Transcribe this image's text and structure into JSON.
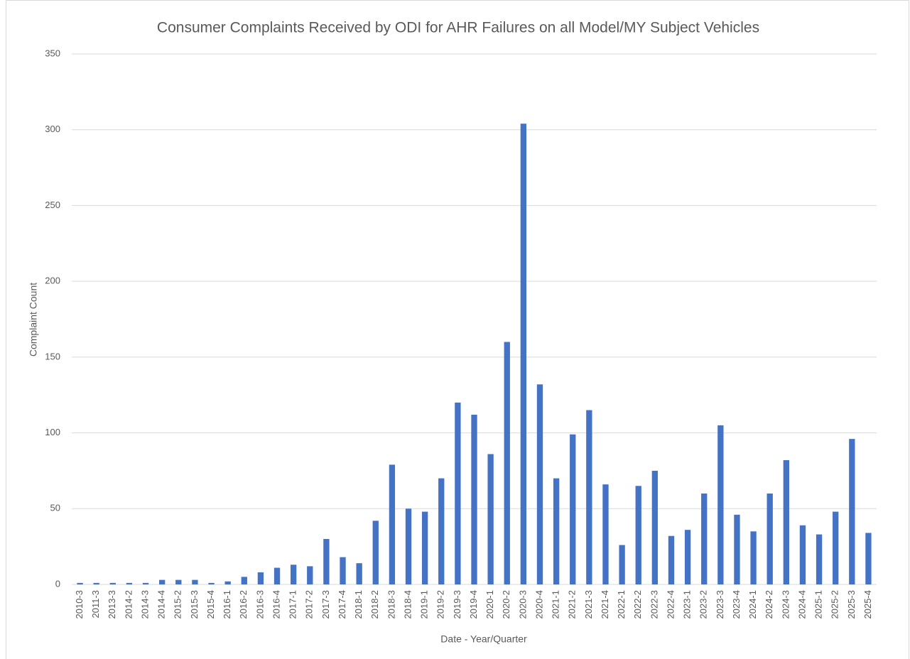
{
  "chart_data": {
    "type": "bar",
    "title": "Consumer Complaints Received by ODI for AHR Failures on all Model/MY Subject Vehicles",
    "xlabel": "Date - Year/Quarter",
    "ylabel": "Complaint Count",
    "categories": [
      "2010-3",
      "2011-3",
      "2013-3",
      "2014-2",
      "2014-3",
      "2014-4",
      "2015-2",
      "2015-3",
      "2015-4",
      "2016-1",
      "2016-2",
      "2016-3",
      "2016-4",
      "2017-1",
      "2017-2",
      "2017-3",
      "2017-4",
      "2018-1",
      "2018-2",
      "2018-3",
      "2018-4",
      "2019-1",
      "2019-2",
      "2019-3",
      "2019-4",
      "2020-1",
      "2020-2",
      "2020-3",
      "2020-4",
      "2021-1",
      "2021-2",
      "2021-3",
      "2021-4",
      "2022-1",
      "2022-2",
      "2022-3",
      "2022-4",
      "2023-1",
      "2023-2",
      "2023-3",
      "2023-4",
      "2024-1",
      "2024-2",
      "2024-3",
      "2024-4",
      "2025-1",
      "2025-2",
      "2025-3",
      "2025-4"
    ],
    "values": [
      1,
      1,
      1,
      1,
      1,
      3,
      3,
      3,
      1,
      2,
      5,
      8,
      11,
      13,
      12,
      30,
      18,
      14,
      42,
      79,
      50,
      48,
      70,
      120,
      112,
      86,
      160,
      304,
      132,
      70,
      99,
      115,
      66,
      26,
      65,
      75,
      32,
      36,
      60,
      105,
      46,
      35,
      60,
      82,
      39,
      33,
      48,
      96,
      34
    ],
    "color": "#4472c4",
    "ylim": [
      0,
      350
    ],
    "yticks": [
      0,
      50,
      100,
      150,
      200,
      250,
      300,
      350
    ],
    "grid": true
  }
}
